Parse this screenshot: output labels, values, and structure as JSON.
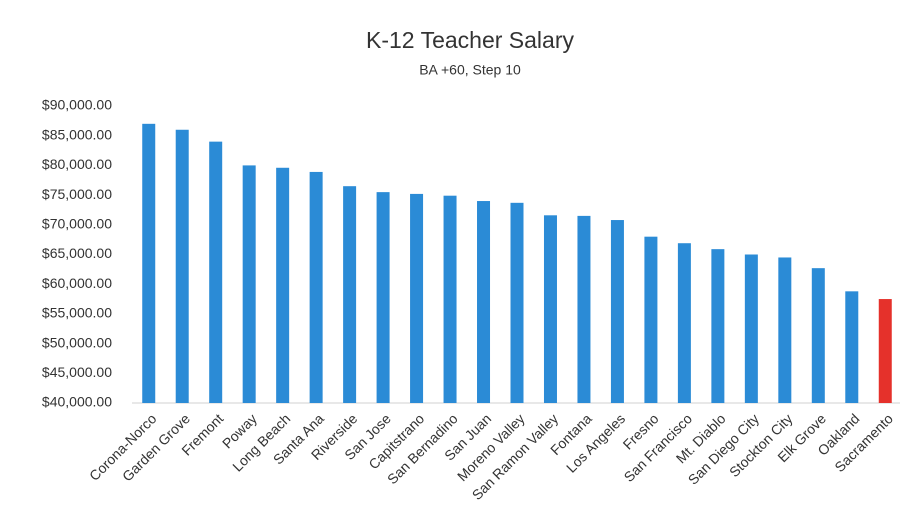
{
  "chart_data": {
    "type": "bar",
    "title": "K-12 Teacher Salary",
    "subtitle": "BA +60, Step 10",
    "categories": [
      "Corona-Norco",
      "Garden Grove",
      "Fremont",
      "Poway",
      "Long Beach",
      "Santa Ana",
      "Riverside",
      "San Jose",
      "Capitstrano",
      "San Bernadino",
      "San Juan",
      "Moreno Valley",
      "San Ramon Valley",
      "Fontana",
      "Los Angeles",
      "Fresno",
      "San Francisco",
      "Mt. Diablo",
      "San Diego City",
      "Stockton City",
      "Elk Grove",
      "Oakland",
      "Sacramento"
    ],
    "values": [
      87000,
      86000,
      84000,
      80000,
      79600,
      78900,
      76500,
      75500,
      75200,
      74900,
      74000,
      73700,
      71600,
      71500,
      70800,
      68000,
      66900,
      65900,
      65000,
      64500,
      62700,
      58800,
      57500
    ],
    "colors": [
      "#2b8bd6",
      "#2b8bd6",
      "#2b8bd6",
      "#2b8bd6",
      "#2b8bd6",
      "#2b8bd6",
      "#2b8bd6",
      "#2b8bd6",
      "#2b8bd6",
      "#2b8bd6",
      "#2b8bd6",
      "#2b8bd6",
      "#2b8bd6",
      "#2b8bd6",
      "#2b8bd6",
      "#2b8bd6",
      "#2b8bd6",
      "#2b8bd6",
      "#2b8bd6",
      "#2b8bd6",
      "#2b8bd6",
      "#2b8bd6",
      "#e5312b"
    ],
    "ylim": [
      40000,
      90000
    ],
    "yticks": [
      {
        "value": 40000,
        "label": "$40,000.00"
      },
      {
        "value": 45000,
        "label": "$45,000.00"
      },
      {
        "value": 50000,
        "label": "$50,000.00"
      },
      {
        "value": 55000,
        "label": "$55,000.00"
      },
      {
        "value": 60000,
        "label": "$60,000.00"
      },
      {
        "value": 65000,
        "label": "$65,000.00"
      },
      {
        "value": 70000,
        "label": "$70,000.00"
      },
      {
        "value": 75000,
        "label": "$75,000.00"
      },
      {
        "value": 80000,
        "label": "$80,000.00"
      },
      {
        "value": 85000,
        "label": "$85,000.00"
      },
      {
        "value": 90000,
        "label": "$90,000.00"
      }
    ],
    "grid": false
  }
}
